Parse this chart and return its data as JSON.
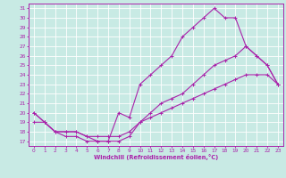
{
  "xlabel": "Windchill (Refroidissement éolien,°C)",
  "bg_color": "#c8eae4",
  "line_color": "#aa22aa",
  "grid_color": "#ffffff",
  "xlim": [
    -0.5,
    23.5
  ],
  "ylim": [
    16.5,
    31.5
  ],
  "yticks": [
    17,
    18,
    19,
    20,
    21,
    22,
    23,
    24,
    25,
    26,
    27,
    28,
    29,
    30,
    31
  ],
  "xticks": [
    0,
    1,
    2,
    3,
    4,
    5,
    6,
    7,
    8,
    9,
    10,
    11,
    12,
    13,
    14,
    15,
    16,
    17,
    18,
    19,
    20,
    21,
    22,
    23
  ],
  "line1_x": [
    0,
    1,
    2,
    3,
    4,
    5,
    6,
    7,
    8,
    9,
    10,
    11,
    12,
    13,
    14,
    15,
    16,
    17,
    18,
    19,
    20,
    21,
    22,
    23
  ],
  "line1_y": [
    20,
    19,
    18,
    17.5,
    17.5,
    17,
    17,
    17,
    20,
    19.5,
    23,
    24,
    25,
    26,
    28,
    29,
    30,
    31,
    30,
    30,
    27,
    26,
    25,
    23
  ],
  "line2_x": [
    0,
    1,
    2,
    3,
    4,
    5,
    6,
    7,
    8,
    9,
    10,
    11,
    12,
    13,
    14,
    15,
    16,
    17,
    18,
    19,
    20,
    21,
    22,
    23
  ],
  "line2_y": [
    20,
    19,
    18,
    18,
    18,
    17.5,
    17,
    17,
    17,
    17.5,
    19,
    20,
    21,
    21.5,
    22,
    23,
    24,
    25,
    25.5,
    26,
    27,
    26,
    25,
    23
  ],
  "line3_x": [
    0,
    1,
    2,
    3,
    4,
    5,
    6,
    7,
    8,
    9,
    10,
    11,
    12,
    13,
    14,
    15,
    16,
    17,
    18,
    19,
    20,
    21,
    22,
    23
  ],
  "line3_y": [
    19,
    19,
    18,
    18,
    18,
    17.5,
    17.5,
    17.5,
    17.5,
    18,
    19,
    19.5,
    20,
    20.5,
    21,
    21.5,
    22,
    22.5,
    23,
    23.5,
    24,
    24,
    24,
    23
  ],
  "marker_size": 2.5,
  "linewidth": 0.8,
  "tick_fontsize": 4.2,
  "xlabel_fontsize": 4.8
}
